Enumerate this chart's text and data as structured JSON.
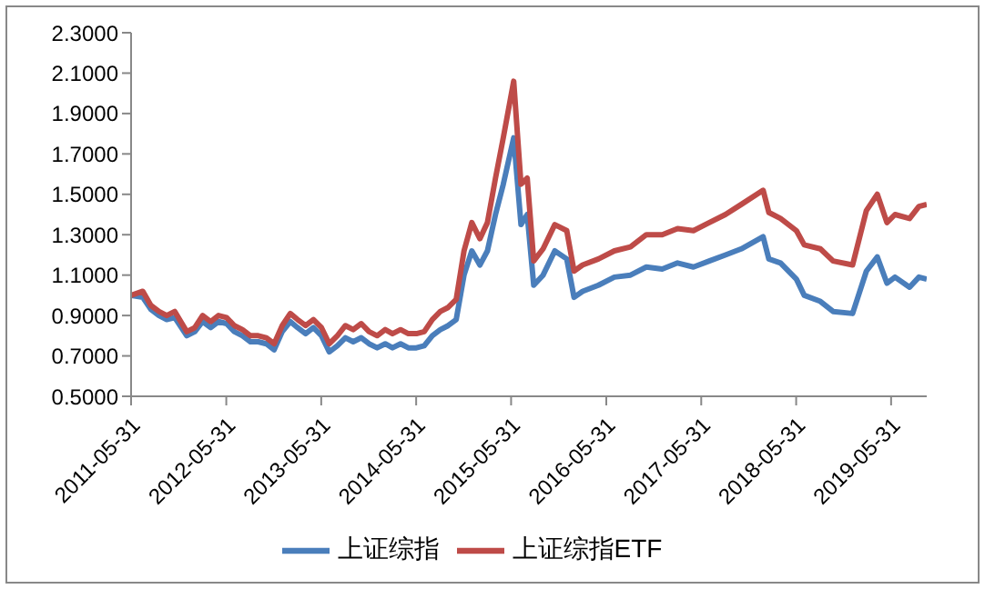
{
  "chart_data": {
    "type": "line",
    "x": [
      "2011-05-31",
      "2011-07-15",
      "2011-08-15",
      "2011-09-15",
      "2011-10-15",
      "2011-11-15",
      "2011-12-31",
      "2012-01-31",
      "2012-03-01",
      "2012-04-01",
      "2012-05-01",
      "2012-06-01",
      "2012-07-01",
      "2012-08-01",
      "2012-09-01",
      "2012-10-01",
      "2012-11-01",
      "2012-12-01",
      "2013-01-01",
      "2013-02-01",
      "2013-03-01",
      "2013-04-01",
      "2013-05-01",
      "2013-06-01",
      "2013-07-01",
      "2013-08-01",
      "2013-09-01",
      "2013-10-01",
      "2013-11-01",
      "2013-12-01",
      "2014-01-01",
      "2014-02-01",
      "2014-03-01",
      "2014-04-01",
      "2014-05-01",
      "2014-06-01",
      "2014-07-01",
      "2014-08-01",
      "2014-09-01",
      "2014-10-01",
      "2014-11-01",
      "2014-12-01",
      "2014-12-31",
      "2015-01-31",
      "2015-03-01",
      "2015-04-01",
      "2015-05-01",
      "2015-06-10",
      "2015-07-08",
      "2015-08-01",
      "2015-08-26",
      "2015-10-01",
      "2015-11-15",
      "2015-12-31",
      "2016-01-28",
      "2016-03-01",
      "2016-05-01",
      "2016-07-01",
      "2016-09-01",
      "2016-11-01",
      "2017-01-01",
      "2017-03-01",
      "2017-05-01",
      "2017-07-01",
      "2017-09-01",
      "2017-11-01",
      "2018-01-24",
      "2018-02-15",
      "2018-04-01",
      "2018-06-01",
      "2018-07-01",
      "2018-09-01",
      "2018-10-20",
      "2019-01-03",
      "2019-02-25",
      "2019-04-08",
      "2019-05-15",
      "2019-06-15",
      "2019-08-10",
      "2019-09-15",
      "2019-10-15"
    ],
    "series": [
      {
        "name": "上证综指",
        "color": "#4a7ebb",
        "values": [
          1.0,
          0.99,
          0.93,
          0.9,
          0.88,
          0.89,
          0.8,
          0.82,
          0.87,
          0.84,
          0.87,
          0.86,
          0.82,
          0.8,
          0.77,
          0.77,
          0.76,
          0.73,
          0.82,
          0.87,
          0.84,
          0.81,
          0.84,
          0.8,
          0.72,
          0.75,
          0.79,
          0.77,
          0.79,
          0.76,
          0.74,
          0.76,
          0.74,
          0.76,
          0.74,
          0.74,
          0.75,
          0.8,
          0.83,
          0.85,
          0.88,
          1.1,
          1.22,
          1.15,
          1.22,
          1.4,
          1.55,
          1.78,
          1.35,
          1.4,
          1.05,
          1.1,
          1.22,
          1.18,
          0.99,
          1.02,
          1.05,
          1.09,
          1.1,
          1.14,
          1.13,
          1.16,
          1.14,
          1.17,
          1.2,
          1.23,
          1.29,
          1.18,
          1.16,
          1.08,
          1.0,
          0.97,
          0.92,
          0.91,
          1.12,
          1.19,
          1.06,
          1.09,
          1.04,
          1.09,
          1.08
        ]
      },
      {
        "name": "上证综指ETF",
        "color": "#be4b48",
        "values": [
          1.0,
          1.02,
          0.95,
          0.92,
          0.9,
          0.92,
          0.82,
          0.84,
          0.9,
          0.87,
          0.9,
          0.89,
          0.85,
          0.83,
          0.8,
          0.8,
          0.79,
          0.76,
          0.85,
          0.91,
          0.88,
          0.85,
          0.88,
          0.84,
          0.76,
          0.8,
          0.85,
          0.83,
          0.86,
          0.82,
          0.8,
          0.83,
          0.81,
          0.83,
          0.81,
          0.81,
          0.82,
          0.88,
          0.92,
          0.94,
          0.98,
          1.22,
          1.36,
          1.28,
          1.36,
          1.58,
          1.78,
          2.06,
          1.55,
          1.58,
          1.17,
          1.23,
          1.35,
          1.32,
          1.12,
          1.15,
          1.18,
          1.22,
          1.24,
          1.3,
          1.3,
          1.33,
          1.32,
          1.36,
          1.4,
          1.45,
          1.52,
          1.41,
          1.38,
          1.32,
          1.25,
          1.23,
          1.17,
          1.15,
          1.42,
          1.5,
          1.36,
          1.4,
          1.38,
          1.44,
          1.45
        ]
      }
    ],
    "xlim": [
      "2011-05-31",
      "2019-10-15"
    ],
    "xticks": [
      "2011-05-31",
      "2012-05-31",
      "2013-05-31",
      "2014-05-31",
      "2015-05-31",
      "2016-05-31",
      "2017-05-31",
      "2018-05-31",
      "2019-05-31"
    ],
    "ylim": [
      0.5,
      2.3
    ],
    "yticks": [
      {
        "value": 0.5,
        "label": "0.5000"
      },
      {
        "value": 0.7,
        "label": "0.7000"
      },
      {
        "value": 0.9,
        "label": "0.9000"
      },
      {
        "value": 1.1,
        "label": "1.1000"
      },
      {
        "value": 1.3,
        "label": "1.3000"
      },
      {
        "value": 1.5,
        "label": "1.5000"
      },
      {
        "value": 1.7,
        "label": "1.7000"
      },
      {
        "value": 1.9,
        "label": "1.9000"
      },
      {
        "value": 2.1,
        "label": "2.1000"
      },
      {
        "value": 2.3,
        "label": "2.3000"
      }
    ],
    "grid": false,
    "legend": "bottom",
    "marker": "none",
    "line_style": "solid"
  }
}
